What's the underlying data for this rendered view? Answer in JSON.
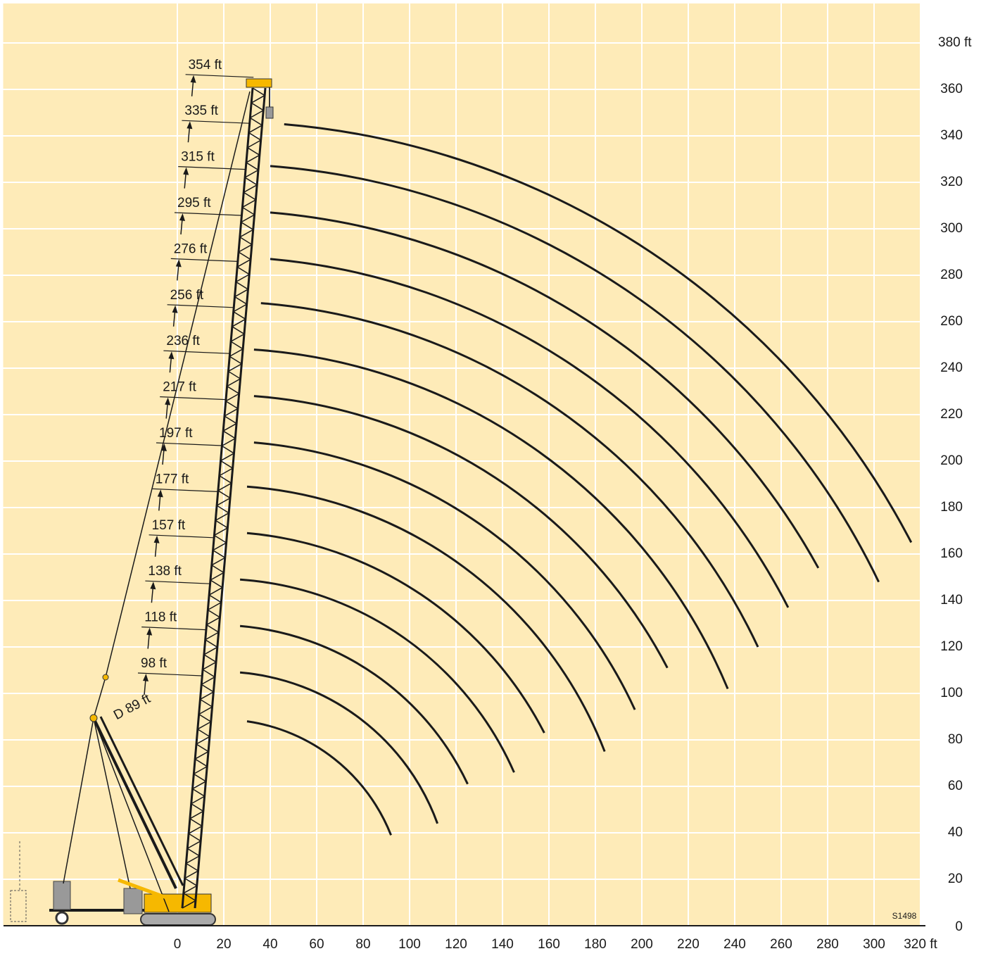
{
  "chart_data": {
    "type": "range",
    "xlim": [
      -75,
      320
    ],
    "ylim": [
      0,
      397
    ],
    "xticks": [
      0,
      20,
      40,
      60,
      80,
      100,
      120,
      140,
      160,
      180,
      200,
      220,
      240,
      260,
      280,
      300,
      {
        "value": 320,
        "label": "320 ft"
      }
    ],
    "yticks": [
      0,
      20,
      40,
      60,
      80,
      100,
      120,
      140,
      160,
      180,
      200,
      220,
      240,
      260,
      280,
      300,
      320,
      340,
      360,
      {
        "value": 380,
        "label": "380 ft"
      }
    ],
    "grid": true,
    "color": "#1a1a1a",
    "series": [
      {
        "x": [
          46,
          316
        ],
        "y": [
          345,
          165
        ]
      },
      {
        "x": [
          40,
          302
        ],
        "y": [
          327,
          148
        ]
      },
      {
        "x": [
          40,
          276
        ],
        "y": [
          307,
          154
        ]
      },
      {
        "x": [
          40,
          263
        ],
        "y": [
          287,
          137
        ]
      },
      {
        "x": [
          36,
          250
        ],
        "y": [
          268,
          120
        ]
      },
      {
        "x": [
          33,
          237
        ],
        "y": [
          248,
          102
        ]
      },
      {
        "x": [
          33,
          211
        ],
        "y": [
          228,
          111
        ]
      },
      {
        "x": [
          33,
          197
        ],
        "y": [
          208,
          93
        ]
      },
      {
        "x": [
          30,
          184
        ],
        "y": [
          189,
          75
        ]
      },
      {
        "x": [
          30,
          158
        ],
        "y": [
          169,
          83
        ]
      },
      {
        "x": [
          27,
          145
        ],
        "y": [
          149,
          66
        ]
      },
      {
        "x": [
          27,
          125
        ],
        "y": [
          129,
          61
        ]
      },
      {
        "x": [
          27,
          112
        ],
        "y": [
          109,
          44
        ]
      },
      {
        "x": [
          30,
          92
        ],
        "y": [
          88,
          39
        ]
      }
    ],
    "boom_lengths": [
      "98 ft",
      "118 ft",
      "138 ft",
      "157 ft",
      "177 ft",
      "197 ft",
      "217 ft",
      "236 ft",
      "256 ft",
      "276 ft",
      "295 ft",
      "315 ft",
      "335 ft",
      "354 ft"
    ],
    "jib_label": "D 89 ft",
    "code": "S1498"
  }
}
